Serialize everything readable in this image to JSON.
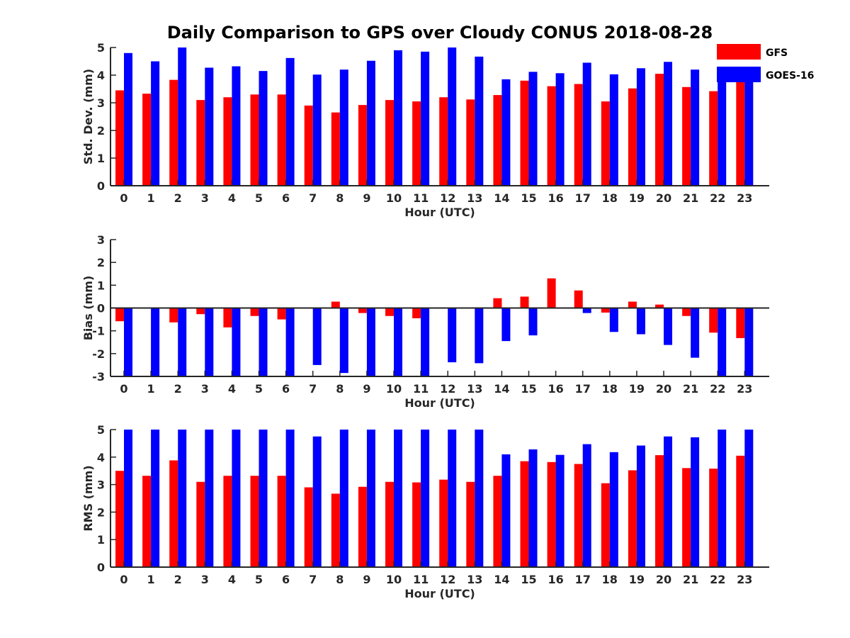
{
  "title": "Daily Comparison to GPS over Cloudy CONUS 2018-08-28",
  "legend": [
    {
      "label": "GFS",
      "color": "#ff0000"
    },
    {
      "label": "GOES-16",
      "color": "#0000ff"
    }
  ],
  "chart_data": [
    {
      "type": "bar",
      "xlabel": "Hour (UTC)",
      "ylabel": "Std. Dev. (mm)",
      "ylim": [
        0,
        5
      ],
      "yticks": [
        "0",
        "1",
        "2",
        "3",
        "4",
        "5"
      ],
      "categories": [
        "0",
        "1",
        "2",
        "3",
        "4",
        "5",
        "6",
        "7",
        "8",
        "9",
        "10",
        "11",
        "12",
        "13",
        "14",
        "15",
        "16",
        "17",
        "18",
        "19",
        "20",
        "21",
        "22",
        "23"
      ],
      "series": [
        {
          "name": "GFS",
          "color": "#ff0000",
          "values": [
            3.45,
            3.33,
            3.83,
            3.1,
            3.2,
            3.3,
            3.3,
            2.9,
            2.65,
            2.92,
            3.1,
            3.05,
            3.2,
            3.12,
            3.28,
            3.8,
            3.6,
            3.68,
            3.05,
            3.52,
            4.05,
            3.57,
            3.42,
            3.75
          ]
        },
        {
          "name": "GOES-16",
          "color": "#0000ff",
          "values": [
            4.8,
            4.5,
            5.0,
            4.27,
            4.32,
            4.15,
            4.62,
            4.02,
            4.2,
            4.52,
            4.9,
            4.85,
            5.0,
            4.67,
            3.85,
            4.12,
            4.07,
            4.45,
            4.03,
            4.25,
            4.48,
            4.2,
            4.3,
            4.15
          ]
        }
      ]
    },
    {
      "type": "bar",
      "xlabel": "Hour (UTC)",
      "ylabel": "Bias (mm)",
      "ylim": [
        -3,
        3
      ],
      "yticks": [
        "-3",
        "-2",
        "-1",
        "0",
        "1",
        "2",
        "3"
      ],
      "zero_line": true,
      "categories": [
        "0",
        "1",
        "2",
        "3",
        "4",
        "5",
        "6",
        "7",
        "8",
        "9",
        "10",
        "11",
        "12",
        "13",
        "14",
        "15",
        "16",
        "17",
        "18",
        "19",
        "20",
        "21",
        "22",
        "23"
      ],
      "series": [
        {
          "name": "GFS",
          "color": "#ff0000",
          "values": [
            -0.58,
            0.0,
            -0.63,
            -0.27,
            -0.85,
            -0.35,
            -0.5,
            0.0,
            0.28,
            -0.22,
            -0.35,
            -0.45,
            0.0,
            0.0,
            0.43,
            0.5,
            1.3,
            0.77,
            -0.2,
            0.28,
            0.15,
            -0.35,
            -1.08,
            -1.32
          ]
        },
        {
          "name": "GOES-16",
          "color": "#0000ff",
          "values": [
            -3.0,
            -3.0,
            -3.0,
            -3.0,
            -3.0,
            -3.0,
            -3.0,
            -2.5,
            -2.85,
            -3.0,
            -3.0,
            -3.0,
            -2.38,
            -2.42,
            -1.45,
            -1.2,
            0.0,
            -0.22,
            -1.05,
            -1.15,
            -1.62,
            -2.18,
            -3.0,
            -3.0
          ]
        }
      ]
    },
    {
      "type": "bar",
      "xlabel": "Hour (UTC)",
      "ylabel": "RMS (mm)",
      "ylim": [
        0,
        5
      ],
      "yticks": [
        "0",
        "1",
        "2",
        "3",
        "4",
        "5"
      ],
      "categories": [
        "0",
        "1",
        "2",
        "3",
        "4",
        "5",
        "6",
        "7",
        "8",
        "9",
        "10",
        "11",
        "12",
        "13",
        "14",
        "15",
        "16",
        "17",
        "18",
        "19",
        "20",
        "21",
        "22",
        "23"
      ],
      "series": [
        {
          "name": "GFS",
          "color": "#ff0000",
          "values": [
            3.5,
            3.32,
            3.88,
            3.1,
            3.32,
            3.32,
            3.32,
            2.9,
            2.67,
            2.92,
            3.1,
            3.08,
            3.18,
            3.1,
            3.32,
            3.85,
            3.82,
            3.75,
            3.05,
            3.52,
            4.07,
            3.6,
            3.58,
            4.05
          ]
        },
        {
          "name": "GOES-16",
          "color": "#0000ff",
          "values": [
            5.0,
            5.0,
            5.0,
            5.0,
            5.0,
            5.0,
            5.0,
            4.75,
            5.0,
            5.0,
            5.0,
            5.0,
            5.0,
            5.0,
            4.1,
            4.28,
            4.08,
            4.47,
            4.18,
            4.42,
            4.75,
            4.72,
            5.0,
            5.0
          ]
        }
      ]
    }
  ]
}
